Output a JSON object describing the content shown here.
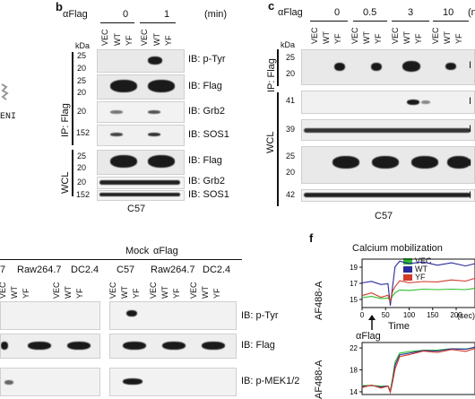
{
  "panel_b": {
    "letter": "b",
    "stim_label": "αFlag",
    "time_0": "0",
    "time_1": "1",
    "time_unit": "(min)",
    "lanes": [
      "VEC",
      "WT",
      "YF",
      "VEC",
      "WT",
      "YF"
    ],
    "kda": "kDa",
    "ip_label": "IP: Flag",
    "wcl_label": "WCL",
    "markers": [
      "25",
      "20",
      "25",
      "20",
      "20",
      "152",
      "25",
      "20",
      "20",
      "152"
    ],
    "ib": [
      "IB: p-Tyr",
      "IB: Flag",
      "IB: Grb2",
      "IB: SOS1",
      "IB: Flag",
      "IB: Grb2",
      "IB: SOS1"
    ],
    "cell": "C57"
  },
  "panel_c": {
    "letter": "c",
    "stim_label": "αFlag",
    "times": [
      "0",
      "0.5",
      "3",
      "10"
    ],
    "time_unit_cut": "(n",
    "lanes": [
      "VEC",
      "WT",
      "YF",
      "VEC",
      "WT",
      "YF",
      "VEC",
      "WT",
      "YF",
      "VEC",
      "WT",
      "YF"
    ],
    "kda": "kDa",
    "ip_label": "IP: Flag",
    "wcl_label": "WCL",
    "markers": [
      "25",
      "20",
      "41",
      "39",
      "25",
      "20",
      "42"
    ],
    "ib_cut": "I",
    "cell": "C57"
  },
  "left_fragment": {
    "text": "ENI"
  },
  "panel_e": {
    "mock": "Mock",
    "aflag": "αFlag",
    "groups_mock": [
      "7",
      "Raw264.7",
      "DC2.4"
    ],
    "groups_aflag": [
      "C57",
      "Raw264.7",
      "DC2.4"
    ],
    "lanes_mock": [
      "VEC",
      "WT",
      "YF",
      "VEC",
      "WT",
      "YF"
    ],
    "lanes_aflag": [
      "VEC",
      "WT",
      "YF",
      "VEC",
      "WT",
      "YF",
      "VEC",
      "WT",
      "YF"
    ],
    "ib": [
      "IB: p-Tyr",
      "IB: Flag",
      "IB: p-MEK1/2"
    ]
  },
  "panel_f": {
    "letter": "f",
    "title": "Calcium mobilization",
    "ylabel": "AF488-A",
    "xlabel": "Time",
    "x_unit": "(sec)",
    "stim": "αFlag",
    "legend": [
      {
        "name": "VEC",
        "color": "#2bbf2b"
      },
      {
        "name": "WT",
        "color": "#2a2a9a"
      },
      {
        "name": "YF",
        "color": "#d23a2a"
      }
    ]
  },
  "chart_data": [
    {
      "type": "line",
      "title": "Calcium mobilization",
      "xlabel": "Time",
      "ylabel": "AF488-A",
      "x_unit": "(sec)",
      "xlim": [
        0,
        240
      ],
      "ylim": [
        14,
        20
      ],
      "xticks": [
        "0",
        "50",
        "100",
        "150",
        "200"
      ],
      "yticks": [
        "15",
        "17",
        "19"
      ],
      "grid": false,
      "legend": "top-right",
      "x": [
        0,
        20,
        40,
        55,
        60,
        65,
        70,
        80,
        100,
        130,
        160,
        190,
        220,
        240
      ],
      "series": [
        {
          "name": "VEC",
          "color": "#2bbf2b",
          "values": [
            15.3,
            15.3,
            15.2,
            15.1,
            14.9,
            15.4,
            15.9,
            16.1,
            16.2,
            16.2,
            16.3,
            16.2,
            16.3,
            16.3
          ]
        },
        {
          "name": "WT",
          "color": "#2a2a9a",
          "values": [
            17.2,
            17.1,
            17.0,
            16.8,
            14.4,
            16.5,
            19.2,
            19.6,
            19.6,
            19.5,
            19.4,
            19.4,
            19.3,
            19.3
          ]
        },
        {
          "name": "YF",
          "color": "#d23a2a",
          "values": [
            15.7,
            15.6,
            15.5,
            15.3,
            15.0,
            15.8,
            16.8,
            17.1,
            17.3,
            17.0,
            17.4,
            17.2,
            17.5,
            17.4
          ]
        }
      ]
    },
    {
      "type": "line",
      "ylabel": "AF488-A",
      "xlim": [
        0,
        240
      ],
      "ylim": [
        13.5,
        23
      ],
      "yticks": [
        "14",
        "18",
        "22"
      ],
      "grid": false,
      "x": [
        0,
        20,
        40,
        55,
        60,
        65,
        70,
        80,
        100,
        130,
        160,
        190,
        220,
        240
      ],
      "series": [
        {
          "color": "#2bbf2b",
          "values": [
            15.2,
            15.1,
            15.1,
            15.0,
            14.3,
            16.5,
            19.5,
            21.0,
            21.4,
            21.5,
            21.7,
            21.8,
            21.9,
            22.0
          ]
        },
        {
          "color": "#2a2a9a",
          "values": [
            15.1,
            15.0,
            15.0,
            14.9,
            14.2,
            16.0,
            19.0,
            20.6,
            21.2,
            21.4,
            21.6,
            21.7,
            21.9,
            22.0
          ]
        },
        {
          "color": "#d23a2a",
          "values": [
            15.0,
            15.0,
            14.9,
            14.8,
            14.1,
            15.6,
            18.4,
            20.2,
            21.0,
            21.2,
            21.4,
            21.5,
            21.6,
            21.7
          ]
        }
      ]
    }
  ]
}
